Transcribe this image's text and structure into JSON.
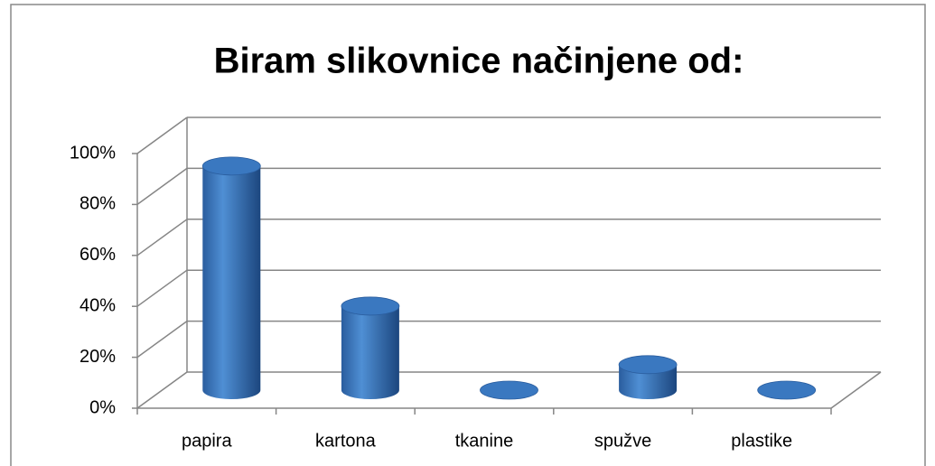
{
  "chart_data": {
    "type": "bar",
    "title": "Biram slikovnice načinjene od:",
    "categories": [
      "papira",
      "kartona",
      "tkanine",
      "spužve",
      "plastike"
    ],
    "values": [
      88,
      33,
      0,
      10,
      0
    ],
    "color": "#3a78c0",
    "ylim": [
      0,
      100
    ],
    "yticks": [
      {
        "value": 0,
        "label": "0%"
      },
      {
        "value": 20,
        "label": "20%"
      },
      {
        "value": 40,
        "label": "40%"
      },
      {
        "value": 60,
        "label": "60%"
      },
      {
        "value": 80,
        "label": "80%"
      },
      {
        "value": 100,
        "label": "100%"
      }
    ],
    "grid": true
  }
}
